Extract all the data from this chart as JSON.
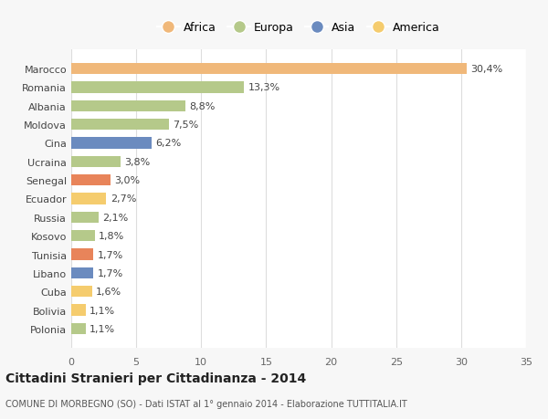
{
  "categories": [
    "Polonia",
    "Bolivia",
    "Cuba",
    "Libano",
    "Tunisia",
    "Kosovo",
    "Russia",
    "Ecuador",
    "Senegal",
    "Ucraina",
    "Cina",
    "Moldova",
    "Albania",
    "Romania",
    "Marocco"
  ],
  "values": [
    1.1,
    1.1,
    1.6,
    1.7,
    1.7,
    1.8,
    2.1,
    2.7,
    3.0,
    3.8,
    6.2,
    7.5,
    8.8,
    13.3,
    30.4
  ],
  "labels": [
    "1,1%",
    "1,1%",
    "1,6%",
    "1,7%",
    "1,7%",
    "1,8%",
    "2,1%",
    "2,7%",
    "3,0%",
    "3,8%",
    "6,2%",
    "7,5%",
    "8,8%",
    "13,3%",
    "30,4%"
  ],
  "colors": [
    "#b5c98a",
    "#f5cc6e",
    "#f5cc6e",
    "#6b8bbf",
    "#e8845a",
    "#b5c98a",
    "#b5c98a",
    "#f5cc6e",
    "#e8845a",
    "#b5c98a",
    "#6b8bbf",
    "#b5c98a",
    "#b5c98a",
    "#b5c98a",
    "#f0b87a"
  ],
  "legend_labels": [
    "Africa",
    "Europa",
    "Asia",
    "America"
  ],
  "legend_colors": [
    "#f0b87a",
    "#b5c98a",
    "#6b8bbf",
    "#f5cc6e"
  ],
  "title": "Cittadini Stranieri per Cittadinanza - 2014",
  "subtitle": "COMUNE DI MORBEGNO (SO) - Dati ISTAT al 1° gennaio 2014 - Elaborazione TUTTITALIA.IT",
  "xlim": [
    0,
    35
  ],
  "xticks": [
    0,
    5,
    10,
    15,
    20,
    25,
    30,
    35
  ],
  "bg_color": "#f7f7f7",
  "bar_bg_color": "#ffffff",
  "grid_color": "#dddddd"
}
